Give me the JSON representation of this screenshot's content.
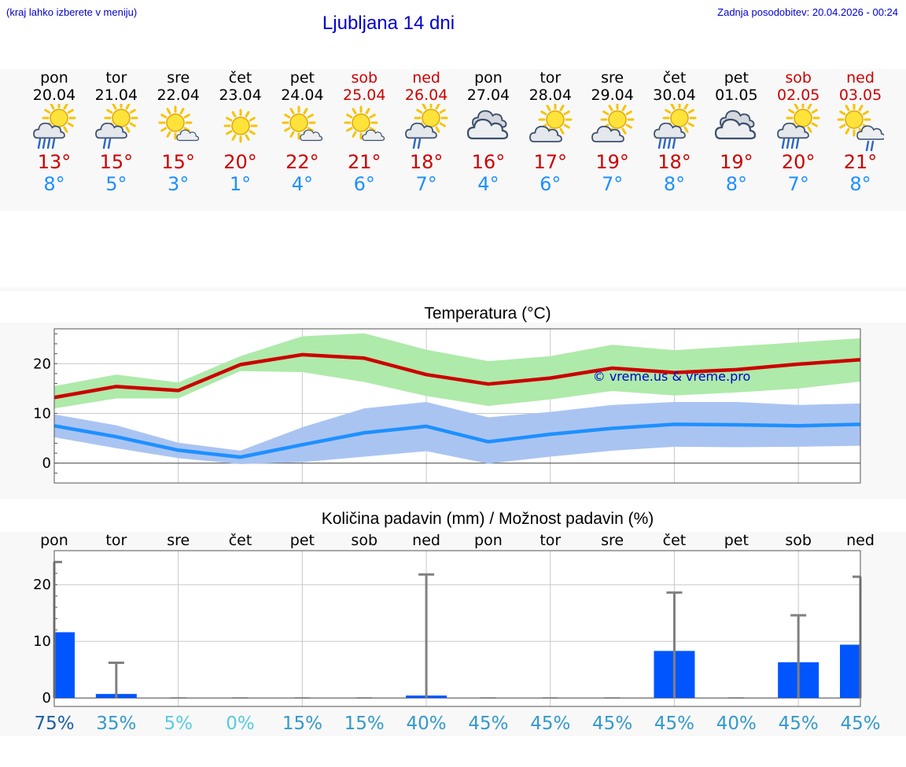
{
  "header": {
    "note": "(kraj lahko izberete v meniju)",
    "title": "Ljubljana 14 dni",
    "updated": "Zadnja posodobitev: 20.04.2026 - 00:24"
  },
  "colors": {
    "link_blue": "#0000cc",
    "max_temp": "#cc0000",
    "min_temp": "#1e90ff",
    "max_band": "#aeeaaa",
    "min_band": "#aac4f2",
    "precip_bar": "#0055ff",
    "error_bar": "#808080"
  },
  "days": [
    {
      "name": "pon",
      "date": "20.04",
      "icon": "sun-cloud-heavy-rain-icon",
      "max": "13°",
      "min": "8°",
      "weekend": false
    },
    {
      "name": "tor",
      "date": "21.04",
      "icon": "sun-cloud-rain-icon",
      "max": "15°",
      "min": "5°",
      "weekend": false
    },
    {
      "name": "sre",
      "date": "22.04",
      "icon": "sun-small-cloud-icon",
      "max": "15°",
      "min": "3°",
      "weekend": false
    },
    {
      "name": "čet",
      "date": "23.04",
      "icon": "sun-icon",
      "max": "20°",
      "min": "1°",
      "weekend": false
    },
    {
      "name": "pet",
      "date": "24.04",
      "icon": "sun-small-cloud-icon",
      "max": "22°",
      "min": "4°",
      "weekend": false
    },
    {
      "name": "sob",
      "date": "25.04",
      "icon": "sun-small-cloud-icon",
      "max": "21°",
      "min": "6°",
      "weekend": true
    },
    {
      "name": "ned",
      "date": "26.04",
      "icon": "sun-cloud-rain-icon",
      "max": "18°",
      "min": "7°",
      "weekend": true
    },
    {
      "name": "pon",
      "date": "27.04",
      "icon": "overcast-icon",
      "max": "16°",
      "min": "4°",
      "weekend": false
    },
    {
      "name": "tor",
      "date": "28.04",
      "icon": "sun-cloud-icon",
      "max": "17°",
      "min": "6°",
      "weekend": false
    },
    {
      "name": "sre",
      "date": "29.04",
      "icon": "sun-cloud-icon",
      "max": "19°",
      "min": "7°",
      "weekend": false
    },
    {
      "name": "čet",
      "date": "30.04",
      "icon": "sun-cloud-heavy-rain-icon",
      "max": "18°",
      "min": "8°",
      "weekend": false
    },
    {
      "name": "pet",
      "date": "01.05",
      "icon": "overcast-icon",
      "max": "19°",
      "min": "8°",
      "weekend": false
    },
    {
      "name": "sob",
      "date": "02.05",
      "icon": "sun-cloud-heavy-rain-icon",
      "max": "20°",
      "min": "7°",
      "weekend": true
    },
    {
      "name": "ned",
      "date": "03.05",
      "icon": "sun-dark-cloud-rain-icon",
      "max": "21°",
      "min": "8°",
      "weekend": true
    }
  ],
  "chart_data": [
    {
      "type": "line",
      "title": "Temperatura (°C)",
      "ylim": [
        -4,
        27
      ],
      "yticks": [
        0,
        10,
        20
      ],
      "grid": true,
      "watermark": "© vreme.us & vreme.pro",
      "x": [
        0,
        1,
        2,
        3,
        4,
        5,
        6,
        7,
        8,
        9,
        10,
        11,
        12,
        13
      ],
      "series": [
        {
          "key": "max",
          "values": [
            13.2,
            15.4,
            14.6,
            19.8,
            21.8,
            21.1,
            17.8,
            15.9,
            17.1,
            19.1,
            18.2,
            18.8,
            19.9,
            20.8
          ],
          "band_low": [
            11.0,
            13.0,
            13.0,
            18.5,
            18.3,
            16.3,
            13.5,
            11.5,
            12.8,
            14.5,
            13.6,
            14.2,
            15.0,
            16.4
          ],
          "band_high": [
            15.5,
            17.8,
            16.2,
            21.5,
            25.5,
            26.1,
            22.8,
            20.5,
            21.5,
            23.8,
            22.7,
            23.5,
            24.3,
            25.1
          ]
        },
        {
          "key": "min",
          "values": [
            7.5,
            5.3,
            2.6,
            1.2,
            3.7,
            6.1,
            7.4,
            4.3,
            5.8,
            7.0,
            7.8,
            7.7,
            7.5,
            7.8
          ],
          "band_low": [
            5.2,
            3.0,
            1.0,
            -0.2,
            0.2,
            1.3,
            2.4,
            -0.1,
            1.3,
            2.5,
            3.3,
            3.2,
            3.3,
            3.5
          ],
          "band_high": [
            9.8,
            7.6,
            4.1,
            2.5,
            7.2,
            11.0,
            12.3,
            9.2,
            10.3,
            11.7,
            12.3,
            12.3,
            11.7,
            12.0
          ]
        }
      ]
    },
    {
      "type": "bar",
      "title": "Količina padavin (mm) / Možnost padavin (%)",
      "ylim": [
        -1.5,
        26
      ],
      "yticks": [
        0,
        10,
        20
      ],
      "grid": true,
      "categories": [
        "pon",
        "tor",
        "sre",
        "čet",
        "pet",
        "sob",
        "ned",
        "pon",
        "tor",
        "sre",
        "čet",
        "pet",
        "sob",
        "ned"
      ],
      "values": [
        11.6,
        0.7,
        0,
        0,
        0,
        0,
        0.3,
        0,
        0,
        0,
        8.3,
        0,
        6.3,
        9.4
      ],
      "error_high": [
        24.0,
        6.2,
        0,
        0,
        0,
        0,
        21.8,
        0,
        0,
        0,
        18.6,
        0,
        14.6,
        21.4
      ],
      "probability": [
        "75%",
        "35%",
        "5%",
        "0%",
        "15%",
        "15%",
        "40%",
        "45%",
        "45%",
        "45%",
        "45%",
        "40%",
        "45%",
        "45%"
      ],
      "probability_colors": [
        "#1a5fa8",
        "#3399cc",
        "#55ccdd",
        "#55ccdd",
        "#3399cc",
        "#3399cc",
        "#3399cc",
        "#3399cc",
        "#3399cc",
        "#3399cc",
        "#3399cc",
        "#3399cc",
        "#3399cc",
        "#3399cc"
      ]
    }
  ]
}
